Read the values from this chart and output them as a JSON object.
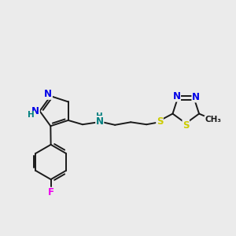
{
  "bg_color": "#ebebeb",
  "bond_color": "#1a1a1a",
  "atom_colors": {
    "N": "#0000e6",
    "S": "#cccc00",
    "F": "#ee00ee",
    "H": "#008080",
    "C": "#1a1a1a"
  },
  "figsize": [
    3.0,
    3.0
  ],
  "dpi": 100,
  "bond_lw": 1.4,
  "font_size": 8.5
}
